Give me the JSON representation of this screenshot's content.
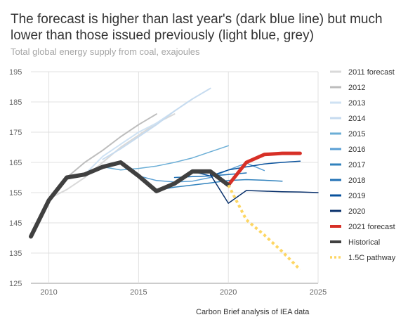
{
  "header": {
    "title": "The forecast is higher than last year's (dark blue line) but much lower than those issued previously (light blue, grey)",
    "subtitle": "Total global energy supply from coal, exajoules"
  },
  "footer": {
    "source": "Carbon Brief analysis of IEA data"
  },
  "chart_data": {
    "type": "line",
    "title": "The forecast is higher than last year's (dark blue line) but much lower than those issued previously (light blue, grey)",
    "subtitle": "Total global energy supply from coal, exajoules",
    "xlabel": "",
    "ylabel": "",
    "xlim": [
      2009,
      2025
    ],
    "ylim": [
      125,
      195
    ],
    "xticks": [
      2010,
      2015,
      2020,
      2025
    ],
    "yticks": [
      125,
      135,
      145,
      155,
      165,
      175,
      185,
      195
    ],
    "grid": "horizontal",
    "legend_position": "right",
    "series": [
      {
        "name": "2011 forecast",
        "color": "#d9d9d9",
        "width": 2,
        "dash": false,
        "points": [
          [
            2010,
            153
          ],
          [
            2011,
            156
          ],
          [
            2012,
            160
          ],
          [
            2013,
            165
          ],
          [
            2014,
            170
          ],
          [
            2015,
            174
          ],
          [
            2016,
            178
          ],
          [
            2017,
            181
          ]
        ]
      },
      {
        "name": "2012",
        "color": "#bdbdbd",
        "width": 2,
        "dash": false,
        "points": [
          [
            2011,
            160
          ],
          [
            2012,
            165
          ],
          [
            2013,
            169
          ],
          [
            2014,
            173.5
          ],
          [
            2015,
            177.5
          ],
          [
            2016,
            181
          ]
        ]
      },
      {
        "name": "2013",
        "color": "#cfe2f3",
        "width": 2,
        "dash": false,
        "points": [
          [
            2012,
            161
          ],
          [
            2013,
            167
          ],
          [
            2014,
            171
          ],
          [
            2015,
            175
          ],
          [
            2016,
            178
          ],
          [
            2017,
            182
          ],
          [
            2018,
            186
          ]
        ]
      },
      {
        "name": "2014",
        "color": "#c6dbef",
        "width": 2,
        "dash": false,
        "points": [
          [
            2013,
            166
          ],
          [
            2014,
            169.5
          ],
          [
            2015,
            173.5
          ],
          [
            2016,
            177.5
          ],
          [
            2017,
            182
          ],
          [
            2018,
            186
          ],
          [
            2019,
            189.5
          ]
        ]
      },
      {
        "name": "2015",
        "color": "#6baed6",
        "width": 1.5,
        "dash": false,
        "points": [
          [
            2013,
            163.5
          ],
          [
            2014,
            162.5
          ],
          [
            2015,
            163
          ],
          [
            2016,
            163.8
          ],
          [
            2017,
            165
          ],
          [
            2018,
            166.5
          ],
          [
            2019,
            168.5
          ],
          [
            2020,
            170.5
          ]
        ]
      },
      {
        "name": "2016",
        "color": "#5a9fd4",
        "width": 1.5,
        "dash": false,
        "points": [
          [
            2015,
            160.5
          ],
          [
            2016,
            159
          ],
          [
            2017,
            158.5
          ],
          [
            2018,
            158.8
          ],
          [
            2019,
            160
          ],
          [
            2020,
            162.5
          ],
          [
            2021,
            164.8
          ],
          [
            2022,
            162.3
          ]
        ]
      },
      {
        "name": "2017",
        "color": "#3182bd",
        "width": 1.5,
        "dash": false,
        "points": [
          [
            2016,
            155.8
          ],
          [
            2017,
            156.8
          ],
          [
            2018,
            157.5
          ],
          [
            2019,
            158.2
          ],
          [
            2020,
            159
          ],
          [
            2021,
            159.3
          ],
          [
            2022,
            159.1
          ],
          [
            2023,
            158.8
          ]
        ]
      },
      {
        "name": "2018",
        "color": "#2171b5",
        "width": 1.5,
        "dash": false,
        "points": [
          [
            2017,
            160
          ],
          [
            2018,
            160.3
          ],
          [
            2019,
            160.5
          ],
          [
            2020,
            161
          ],
          [
            2021,
            161.5
          ]
        ]
      },
      {
        "name": "2019",
        "color": "#08519c",
        "width": 1.5,
        "dash": false,
        "points": [
          [
            2018,
            162
          ],
          [
            2019,
            160.5
          ],
          [
            2020,
            162.5
          ],
          [
            2021,
            163.5
          ],
          [
            2022,
            164.5
          ],
          [
            2023,
            165
          ],
          [
            2024,
            165.4
          ]
        ]
      },
      {
        "name": "2020",
        "color": "#08306b",
        "width": 1.5,
        "dash": false,
        "points": [
          [
            2019,
            161
          ],
          [
            2020,
            151.5
          ],
          [
            2021,
            155.7
          ],
          [
            2022,
            155.5
          ],
          [
            2023,
            155.3
          ],
          [
            2024,
            155.2
          ],
          [
            2025,
            155
          ]
        ]
      },
      {
        "name": "2021 forecast",
        "color": "#d73027",
        "width": 5,
        "dash": false,
        "points": [
          [
            2020,
            157.5
          ],
          [
            2021,
            165
          ],
          [
            2022,
            167.6
          ],
          [
            2023,
            168
          ],
          [
            2024,
            168
          ]
        ]
      },
      {
        "name": "Historical",
        "color": "#404040",
        "width": 6,
        "dash": false,
        "points": [
          [
            2009,
            140.5
          ],
          [
            2010,
            152.5
          ],
          [
            2011,
            160
          ],
          [
            2012,
            161
          ],
          [
            2013,
            163.5
          ],
          [
            2014,
            165
          ],
          [
            2015,
            160.5
          ],
          [
            2016,
            155.5
          ],
          [
            2017,
            158
          ],
          [
            2018,
            162
          ],
          [
            2019,
            162
          ],
          [
            2020,
            157.5
          ]
        ]
      },
      {
        "name": "1.5C pathway",
        "color": "#fdd663",
        "width": 4,
        "dash": true,
        "points": [
          [
            2020,
            157.5
          ],
          [
            2021,
            146
          ],
          [
            2022,
            141
          ],
          [
            2023,
            135.5
          ],
          [
            2024,
            129.5
          ]
        ]
      }
    ]
  }
}
